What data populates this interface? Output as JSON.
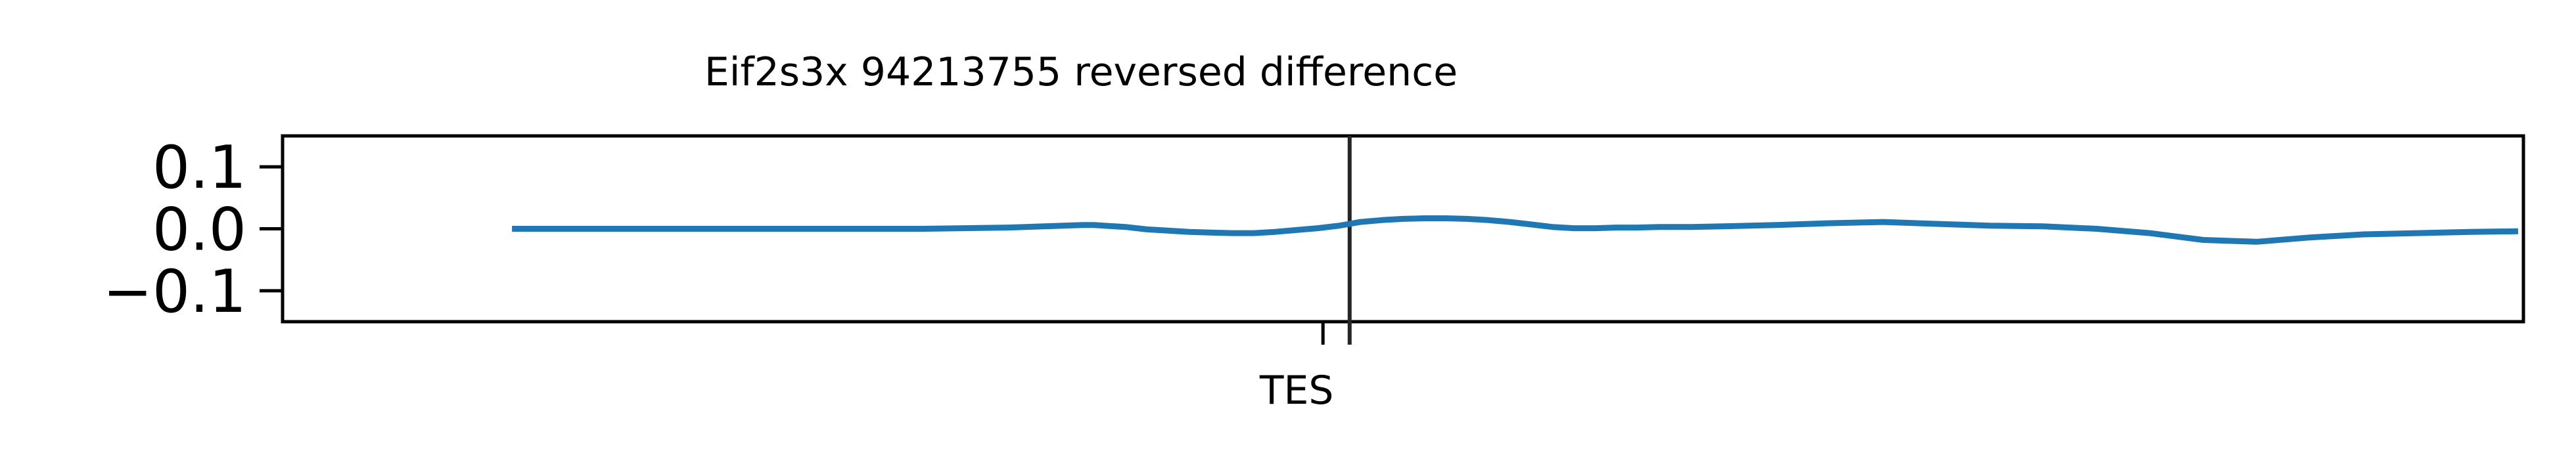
{
  "chart_data": {
    "type": "line",
    "title": "Eif2s3x 94213755 reversed difference",
    "xlabel": "",
    "ylabel": "",
    "ylim": [
      -0.15,
      0.15
    ],
    "yticks": [
      {
        "value": 0.1,
        "label": "0.1"
      },
      {
        "value": 0.0,
        "label": "0.0"
      },
      {
        "value": -0.1,
        "label": "−0.1"
      }
    ],
    "xlim": [
      -1000,
      1100
    ],
    "xticks": [
      {
        "value": -25,
        "label": "TES"
      },
      {
        "value": 0,
        "label": ""
      }
    ],
    "vline_x": 0,
    "grid": false,
    "line_color": "#1f77b4",
    "series": [
      {
        "name": "",
        "x": [
          -785,
          -700,
          -600,
          -500,
          -400,
          -320,
          -250,
          -240,
          -230,
          -210,
          -190,
          -170,
          -150,
          -130,
          -110,
          -90,
          -70,
          -50,
          -30,
          -10,
          0,
          10,
          30,
          50,
          70,
          90,
          110,
          130,
          150,
          170,
          190,
          210,
          230,
          250,
          270,
          290,
          320,
          350,
          400,
          450,
          500,
          550,
          600,
          650,
          700,
          750,
          800,
          850,
          900,
          950,
          1000,
          1050,
          1095
        ],
        "y": [
          0.0,
          0.0,
          0.0,
          0.0,
          0.0,
          0.002,
          0.006,
          0.006,
          0.005,
          0.003,
          -0.001,
          -0.003,
          -0.005,
          -0.006,
          -0.007,
          -0.007,
          -0.005,
          -0.002,
          0.001,
          0.005,
          0.008,
          0.011,
          0.014,
          0.016,
          0.017,
          0.017,
          0.016,
          0.014,
          0.011,
          0.007,
          0.003,
          0.001,
          0.001,
          0.002,
          0.002,
          0.003,
          0.003,
          0.004,
          0.006,
          0.009,
          0.011,
          0.008,
          0.005,
          0.004,
          0.0,
          -0.007,
          -0.018,
          -0.021,
          -0.014,
          -0.009,
          -0.007,
          -0.005,
          -0.004
        ]
      }
    ]
  }
}
